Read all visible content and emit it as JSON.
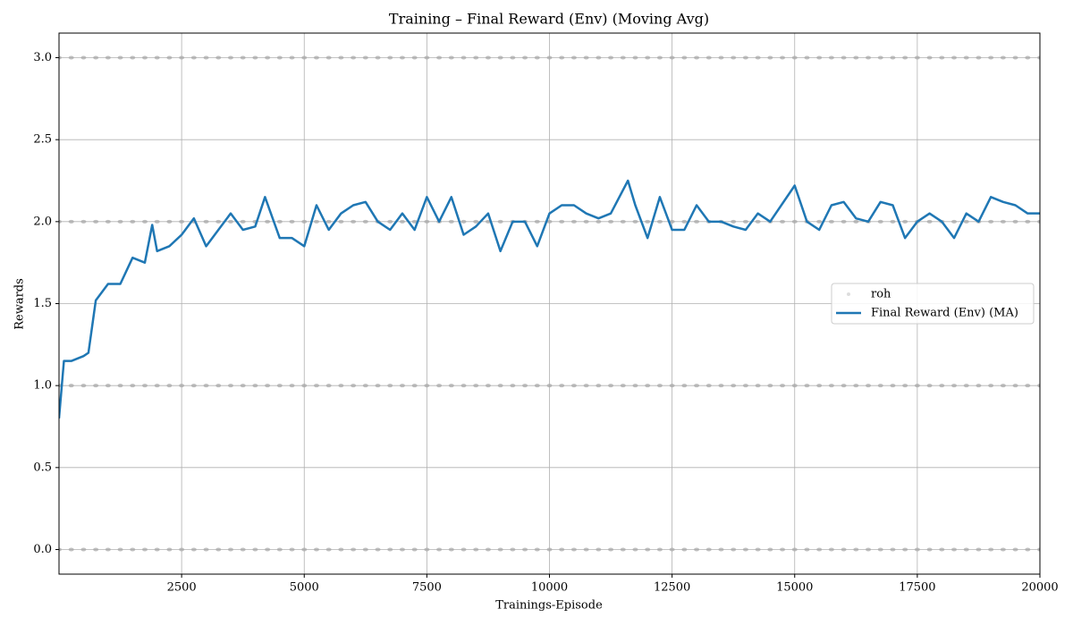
{
  "chart_data": {
    "type": "scatter-line",
    "title": "Training – Final Reward (Env) (Moving Avg)",
    "xlabel": "Trainings-Episode",
    "ylabel": "Rewards",
    "xlim": [
      0,
      20000
    ],
    "ylim": [
      -0.15,
      3.15
    ],
    "xticks": [
      2500,
      5000,
      7500,
      10000,
      12500,
      15000,
      17500,
      20000
    ],
    "yticks": [
      {
        "value": 0,
        "label": "0.0"
      },
      {
        "value": 0.5,
        "label": "0.5"
      },
      {
        "value": 1,
        "label": "1.0"
      },
      {
        "value": 1.5,
        "label": "1.5"
      },
      {
        "value": 2,
        "label": "2.0"
      },
      {
        "value": 2.5,
        "label": "2.5"
      },
      {
        "value": 3,
        "label": "3.0"
      }
    ],
    "grid": true,
    "legend": "center right",
    "series": [
      {
        "name": "roh",
        "kind": "scatter",
        "color": "#aaaaaa",
        "x": [
          0,
          250,
          500,
          750,
          1000,
          1250,
          1500,
          1750,
          2000,
          2250,
          2500,
          2750,
          3000,
          3250,
          3500,
          3750,
          4000,
          4250,
          4500,
          4750,
          5000,
          5250,
          5500,
          5750,
          6000,
          6250,
          6500,
          6750,
          7000,
          7250,
          7500,
          7750,
          8000,
          8250,
          8500,
          8750,
          9000,
          9250,
          9500,
          9750,
          10000,
          10250,
          10500,
          10750,
          11000,
          11250,
          11500,
          11750,
          12000,
          12250,
          12500,
          12750,
          13000,
          13250,
          13500,
          13750,
          14000,
          14250,
          14500,
          14750,
          15000,
          15250,
          15500,
          15750,
          16000,
          16250,
          16500,
          16750,
          17000,
          17250,
          17500,
          17750,
          18000,
          18250,
          18500,
          18750,
          19000,
          19250,
          19500,
          19750,
          20000,
          0,
          250,
          500,
          750,
          1000,
          1250,
          1500,
          1750,
          2000,
          2250,
          2500,
          2750,
          3000,
          3250,
          3500,
          3750,
          4000,
          4250,
          4500,
          4750,
          5000,
          5250,
          5500,
          5750,
          6000,
          6250,
          6500,
          6750,
          7000,
          7250,
          7500,
          7750,
          8000,
          8250,
          8500,
          8750,
          9000,
          9250,
          9500,
          9750,
          10000,
          10250,
          10500,
          10750,
          11000,
          11250,
          11500,
          11750,
          12000,
          12250,
          12500,
          12750,
          13000,
          13250,
          13500,
          13750,
          14000,
          14250,
          14500,
          14750,
          15000,
          15250,
          15500,
          15750,
          16000,
          16250,
          16500,
          16750,
          17000,
          17250,
          17500,
          17750,
          18000,
          18250,
          18500,
          18750,
          19000,
          19250,
          19500,
          19750,
          20000,
          0,
          250,
          500,
          750,
          1000,
          1250,
          1500,
          1750,
          2000,
          2250,
          2500,
          2750,
          3000,
          3250,
          3500,
          3750,
          4000,
          4250,
          4500,
          4750,
          5000,
          5250,
          5500,
          5750,
          6000,
          6250,
          6500,
          6750,
          7000,
          7250,
          7500,
          7750,
          8000,
          8250,
          8500,
          8750,
          9000,
          9250,
          9500,
          9750,
          10000,
          10250,
          10500,
          10750,
          11000,
          11250,
          11500,
          11750,
          12000,
          12250,
          12500,
          12750,
          13000,
          13250,
          13500,
          13750,
          14000,
          14250,
          14500,
          14750,
          15000,
          15250,
          15500,
          15750,
          16000,
          16250,
          16500,
          16750,
          17000,
          17250,
          17500,
          17750,
          18000,
          18250,
          18500,
          18750,
          19000,
          19250,
          19500,
          19750,
          20000,
          0,
          250,
          500,
          750,
          1000,
          1250,
          1500,
          1750,
          2000,
          2250,
          2500,
          2750,
          3000,
          3250,
          3500,
          3750,
          4000,
          4250,
          4500,
          4750,
          5000,
          5250,
          5500,
          5750,
          6000,
          6250,
          6500,
          6750,
          7000,
          7250,
          7500,
          7750,
          8000,
          8250,
          8500,
          8750,
          9000,
          9250,
          9500,
          9750,
          10000,
          10250,
          10500,
          10750,
          11000,
          11250,
          11500,
          11750,
          12000,
          12250,
          12500,
          12750,
          13000,
          13250,
          13500,
          13750,
          14000,
          14250,
          14500,
          14750,
          15000,
          15250,
          15500,
          15750,
          16000,
          16250,
          16500,
          16750,
          17000,
          17250,
          17500,
          17750,
          18000,
          18250,
          18500,
          18750,
          19000,
          19250,
          19500,
          19750,
          20000
        ],
        "values": [
          0,
          0,
          0,
          0,
          0,
          0,
          0,
          0,
          0,
          0,
          0,
          0,
          0,
          0,
          0,
          0,
          0,
          0,
          0,
          0,
          0,
          0,
          0,
          0,
          0,
          0,
          0,
          0,
          0,
          0,
          0,
          0,
          0,
          0,
          0,
          0,
          0,
          0,
          0,
          0,
          0,
          0,
          0,
          0,
          0,
          0,
          0,
          0,
          0,
          0,
          0,
          0,
          0,
          0,
          0,
          0,
          0,
          0,
          0,
          0,
          0,
          0,
          0,
          0,
          0,
          0,
          0,
          0,
          0,
          0,
          0,
          0,
          0,
          0,
          0,
          0,
          0,
          0,
          0,
          0,
          0,
          1,
          1,
          1,
          1,
          1,
          1,
          1,
          1,
          1,
          1,
          1,
          1,
          1,
          1,
          1,
          1,
          1,
          1,
          1,
          1,
          1,
          1,
          1,
          1,
          1,
          1,
          1,
          1,
          1,
          1,
          1,
          1,
          1,
          1,
          1,
          1,
          1,
          1,
          1,
          1,
          1,
          1,
          1,
          1,
          1,
          1,
          1,
          1,
          1,
          1,
          1,
          1,
          1,
          1,
          1,
          1,
          1,
          1,
          1,
          1,
          1,
          1,
          1,
          1,
          1,
          1,
          1,
          1,
          1,
          1,
          1,
          1,
          1,
          1,
          1,
          1,
          1,
          1,
          1,
          1,
          1,
          2,
          2,
          2,
          2,
          2,
          2,
          2,
          2,
          2,
          2,
          2,
          2,
          2,
          2,
          2,
          2,
          2,
          2,
          2,
          2,
          2,
          2,
          2,
          2,
          2,
          2,
          2,
          2,
          2,
          2,
          2,
          2,
          2,
          2,
          2,
          2,
          2,
          2,
          2,
          2,
          2,
          2,
          2,
          2,
          2,
          2,
          2,
          2,
          2,
          2,
          2,
          2,
          2,
          2,
          2,
          2,
          2,
          2,
          2,
          2,
          2,
          2,
          2,
          2,
          2,
          2,
          2,
          2,
          2,
          2,
          2,
          2,
          2,
          2,
          2,
          2,
          2,
          2,
          2,
          2,
          2,
          3,
          3,
          3,
          3,
          3,
          3,
          3,
          3,
          3,
          3,
          3,
          3,
          3,
          3,
          3,
          3,
          3,
          3,
          3,
          3,
          3,
          3,
          3,
          3,
          3,
          3,
          3,
          3,
          3,
          3,
          3,
          3,
          3,
          3,
          3,
          3,
          3,
          3,
          3,
          3,
          3,
          3,
          3,
          3,
          3,
          3,
          3,
          3,
          3,
          3,
          3,
          3,
          3,
          3,
          3,
          3,
          3,
          3,
          3,
          3,
          3,
          3,
          3,
          3,
          3,
          3,
          3,
          3,
          3,
          3,
          3,
          3,
          3,
          3,
          3,
          3,
          3,
          3,
          3,
          3,
          3
        ]
      },
      {
        "name": "Final Reward (Env) (MA)",
        "kind": "line",
        "color": "#1f77b4",
        "x": [
          0,
          100,
          250,
          500,
          600,
          750,
          1000,
          1250,
          1500,
          1750,
          1900,
          2000,
          2250,
          2500,
          2750,
          3000,
          3250,
          3500,
          3750,
          4000,
          4200,
          4500,
          4750,
          5000,
          5250,
          5500,
          5750,
          6000,
          6250,
          6500,
          6750,
          7000,
          7250,
          7500,
          7750,
          8000,
          8250,
          8500,
          8750,
          9000,
          9250,
          9500,
          9750,
          10000,
          10250,
          10500,
          10750,
          11000,
          11250,
          11600,
          11750,
          12000,
          12250,
          12500,
          12750,
          13000,
          13250,
          13500,
          13750,
          14000,
          14250,
          14500,
          15000,
          15250,
          15500,
          15750,
          16000,
          16250,
          16500,
          16750,
          17000,
          17250,
          17500,
          17750,
          18000,
          18250,
          18500,
          18750,
          19000,
          19250,
          19500,
          19750,
          20000
        ],
        "values": [
          0.8,
          1.15,
          1.15,
          1.18,
          1.2,
          1.52,
          1.62,
          1.62,
          1.78,
          1.75,
          1.98,
          1.82,
          1.85,
          1.92,
          2.02,
          1.85,
          1.95,
          2.05,
          1.95,
          1.97,
          2.15,
          1.9,
          1.9,
          1.85,
          2.1,
          1.95,
          2.05,
          2.1,
          2.12,
          2.0,
          1.95,
          2.05,
          1.95,
          2.15,
          2.0,
          2.15,
          1.92,
          1.97,
          2.05,
          1.82,
          2.0,
          2.0,
          1.85,
          2.05,
          2.1,
          2.1,
          2.05,
          2.02,
          2.05,
          2.25,
          2.1,
          1.9,
          2.15,
          1.95,
          1.95,
          2.1,
          2.0,
          2.0,
          1.97,
          1.95,
          2.05,
          2.0,
          2.22,
          2.0,
          1.95,
          2.1,
          2.12,
          2.02,
          2.0,
          2.12,
          2.1,
          1.9,
          2.0,
          2.05,
          2.0,
          1.9,
          2.05,
          2.0,
          2.15,
          2.12,
          2.1,
          2.05,
          2.05
        ]
      }
    ]
  }
}
